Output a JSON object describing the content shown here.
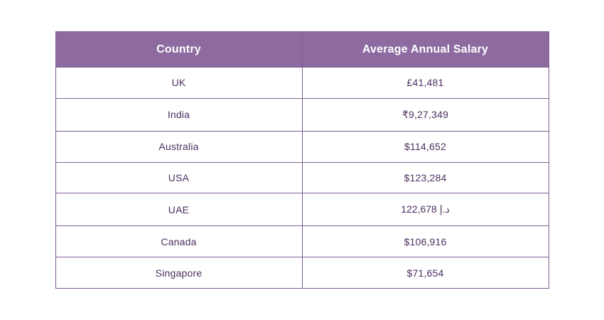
{
  "chart_data": {
    "type": "table",
    "title": "",
    "columns": [
      "Country",
      "Average Annual Salary"
    ],
    "rows": [
      [
        "UK",
        "£41,481"
      ],
      [
        "India",
        "₹9,27,349"
      ],
      [
        "Australia",
        "$114,652"
      ],
      [
        "USA",
        "$123,284"
      ],
      [
        "UAE",
        "122,678 د.إ"
      ],
      [
        "Canada",
        "$106,916"
      ],
      [
        "Singapore",
        "$71,654"
      ]
    ]
  },
  "colors": {
    "header_bg": "#8d6ba0",
    "header_text": "#ffffff",
    "cell_text": "#4d2f60",
    "border": "#7e5f92",
    "row_bg": "#ffffff",
    "page_bg": "#ffffff"
  }
}
